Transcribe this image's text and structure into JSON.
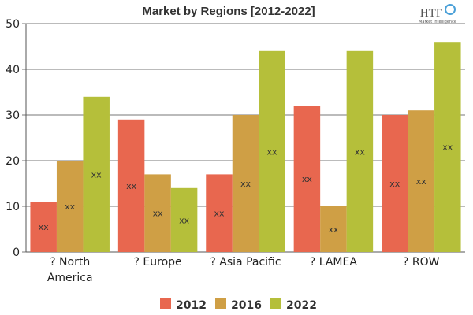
{
  "chart_data": {
    "type": "bar",
    "title": "Market by Regions [2012-2022]",
    "categories": [
      "? North America",
      "? Europe",
      "? Asia Pacific",
      "? LAMEA",
      "? ROW"
    ],
    "category_lines": [
      [
        "? North",
        "America"
      ],
      [
        "? Europe"
      ],
      [
        "? Asia Pacific"
      ],
      [
        "? LAMEA"
      ],
      [
        "? ROW"
      ]
    ],
    "series": [
      {
        "name": "2012",
        "color": "#e8674f",
        "values": [
          11,
          29,
          17,
          32,
          30
        ]
      },
      {
        "name": "2016",
        "color": "#cf9f45",
        "values": [
          20,
          17,
          30,
          10,
          31
        ]
      },
      {
        "name": "2022",
        "color": "#b5bf3a",
        "values": [
          34,
          14,
          44,
          44,
          46
        ]
      }
    ],
    "data_label": "xx",
    "ylim": [
      0,
      50
    ],
    "yticks": [
      0,
      10,
      20,
      30,
      40,
      50
    ],
    "grid": true,
    "legend": "bottom",
    "xlabel": "",
    "ylabel": ""
  },
  "logo": {
    "text": "HTF",
    "subtext": "Market Intelligence"
  }
}
